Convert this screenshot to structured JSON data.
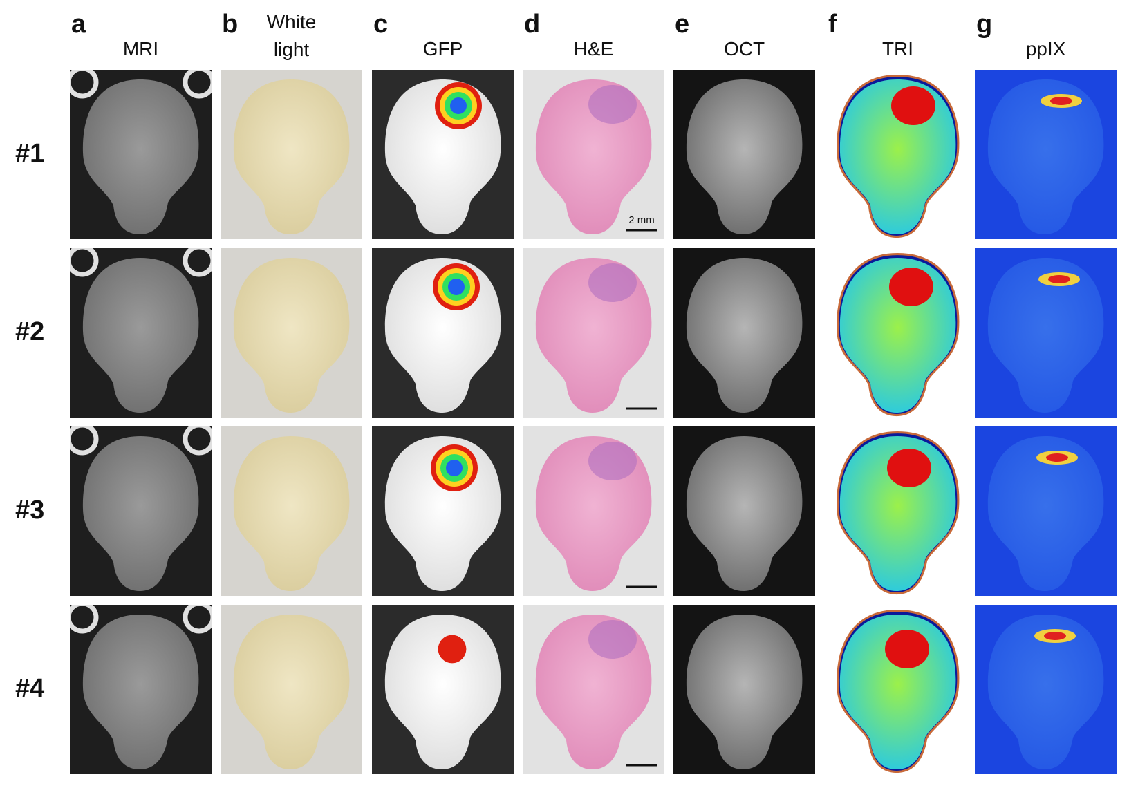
{
  "columns": [
    {
      "letter": "a",
      "title": "MRI"
    },
    {
      "letter": "b",
      "title": "White light"
    },
    {
      "letter": "c",
      "title": "GFP"
    },
    {
      "letter": "d",
      "title": "H&E"
    },
    {
      "letter": "e",
      "title": "OCT"
    },
    {
      "letter": "f",
      "title": "TRI"
    },
    {
      "letter": "g",
      "title": "ppIX"
    }
  ],
  "rows": [
    "#1",
    "#2",
    "#3",
    "#4"
  ],
  "scale_bar": "2 mm"
}
